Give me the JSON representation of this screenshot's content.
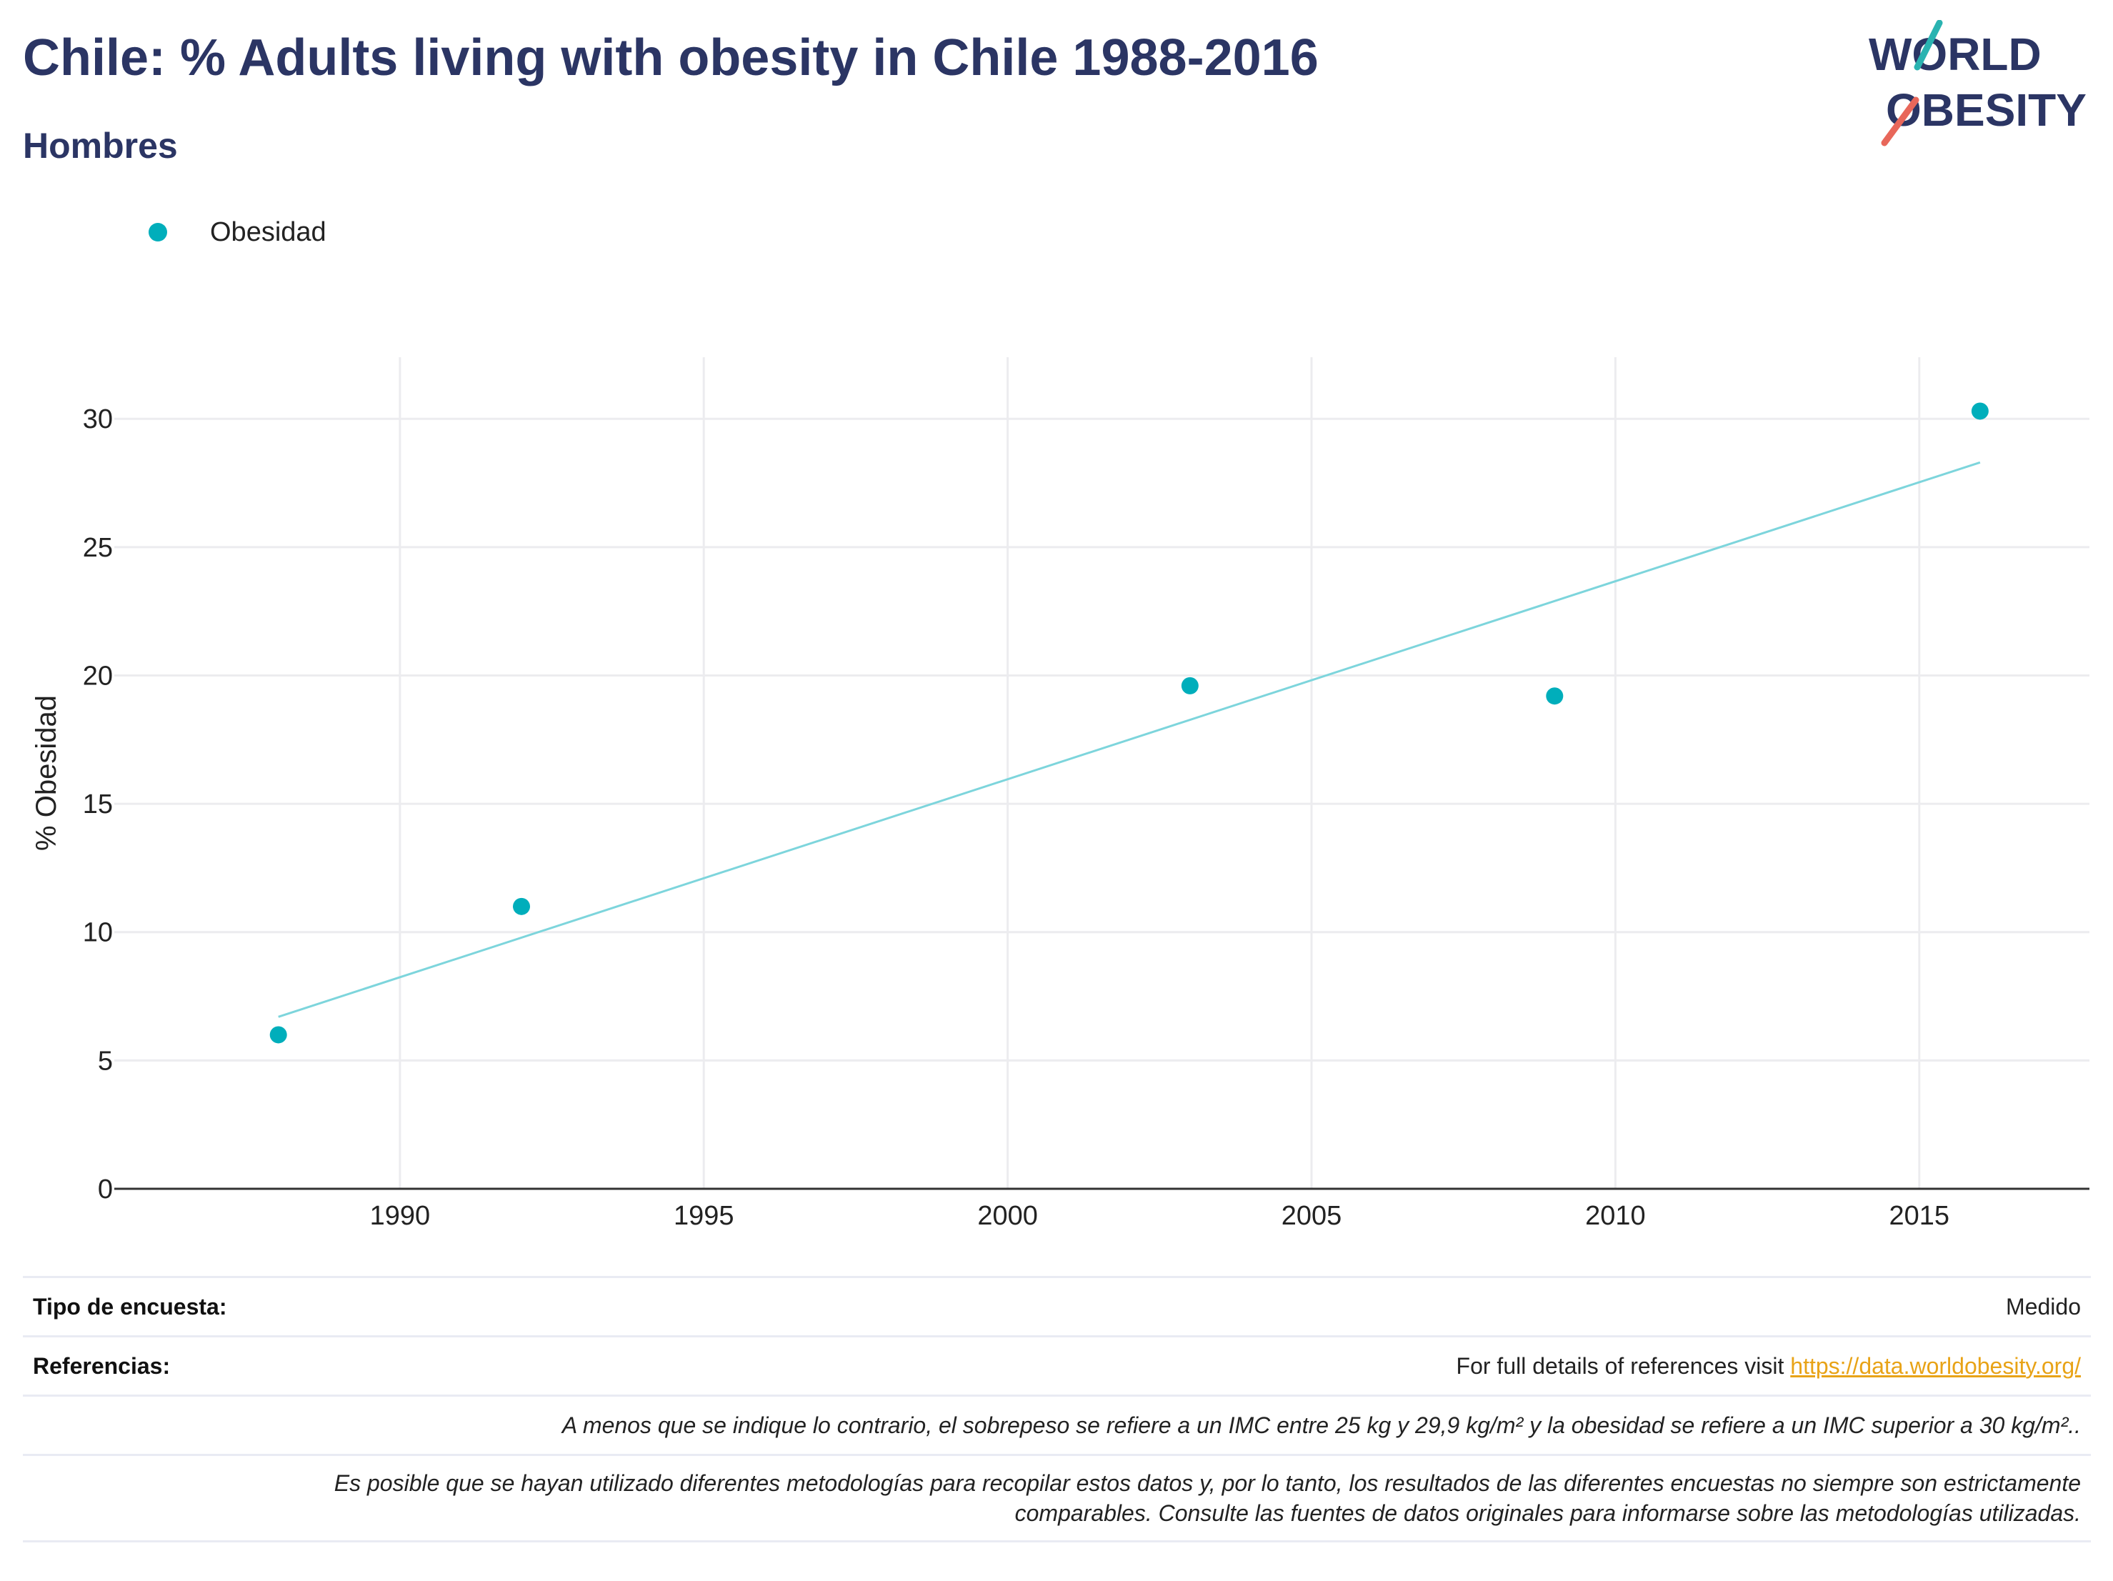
{
  "header": {
    "title": "Chile: % Adults living with obesity in Chile 1988-2016",
    "subtitle": "Hombres"
  },
  "logo": {
    "line1": "WORLD",
    "line2": "OBESITY",
    "text_color": "#2b3564",
    "slash_teal": "#2ab3b1",
    "slash_red": "#e8675a"
  },
  "legend": {
    "label": "Obesidad",
    "color": "#00aebb"
  },
  "chart_data": {
    "type": "scatter",
    "title": "",
    "xlabel": "",
    "ylabel": "% Obesidad",
    "xlim": [
      1985.3,
      2017.8
    ],
    "ylim": [
      0,
      32.4
    ],
    "xticks": [
      1990,
      1995,
      2000,
      2005,
      2010,
      2015
    ],
    "yticks": [
      0,
      5,
      10,
      15,
      20,
      25,
      30
    ],
    "grid": true,
    "legend_position": "top-left",
    "series": [
      {
        "name": "Obesidad",
        "color": "#00aebb",
        "points": [
          {
            "x": 1988,
            "y": 6.0
          },
          {
            "x": 1992,
            "y": 11.0
          },
          {
            "x": 2003,
            "y": 19.6
          },
          {
            "x": 2009,
            "y": 19.2
          },
          {
            "x": 2016,
            "y": 30.3
          }
        ]
      }
    ],
    "trendline": {
      "color": "#7dd5dc",
      "points": [
        {
          "x": 1988,
          "y": 6.7
        },
        {
          "x": 2016,
          "y": 28.3
        }
      ]
    }
  },
  "footer": {
    "survey_label": "Tipo de encuesta:",
    "survey_value": "Medido",
    "refs_label": "Referencias:",
    "refs_text": "For full details of references visit ",
    "refs_link": "https://data.worldobesity.org/",
    "note1": "A menos que se indique lo contrario, el sobrepeso se refiere a un IMC entre 25 kg y 29,9 kg/m² y la obesidad se refiere a un IMC superior a 30 kg/m²..",
    "note2_line1": "Es posible que se hayan utilizado diferentes metodologías para recopilar estos datos y, por lo tanto, los resultados de las diferentes encuestas no siempre son estrictamente",
    "note2_line2": "comparables. Consulte las fuentes de datos originales para informarse sobre las metodologías utilizadas."
  }
}
